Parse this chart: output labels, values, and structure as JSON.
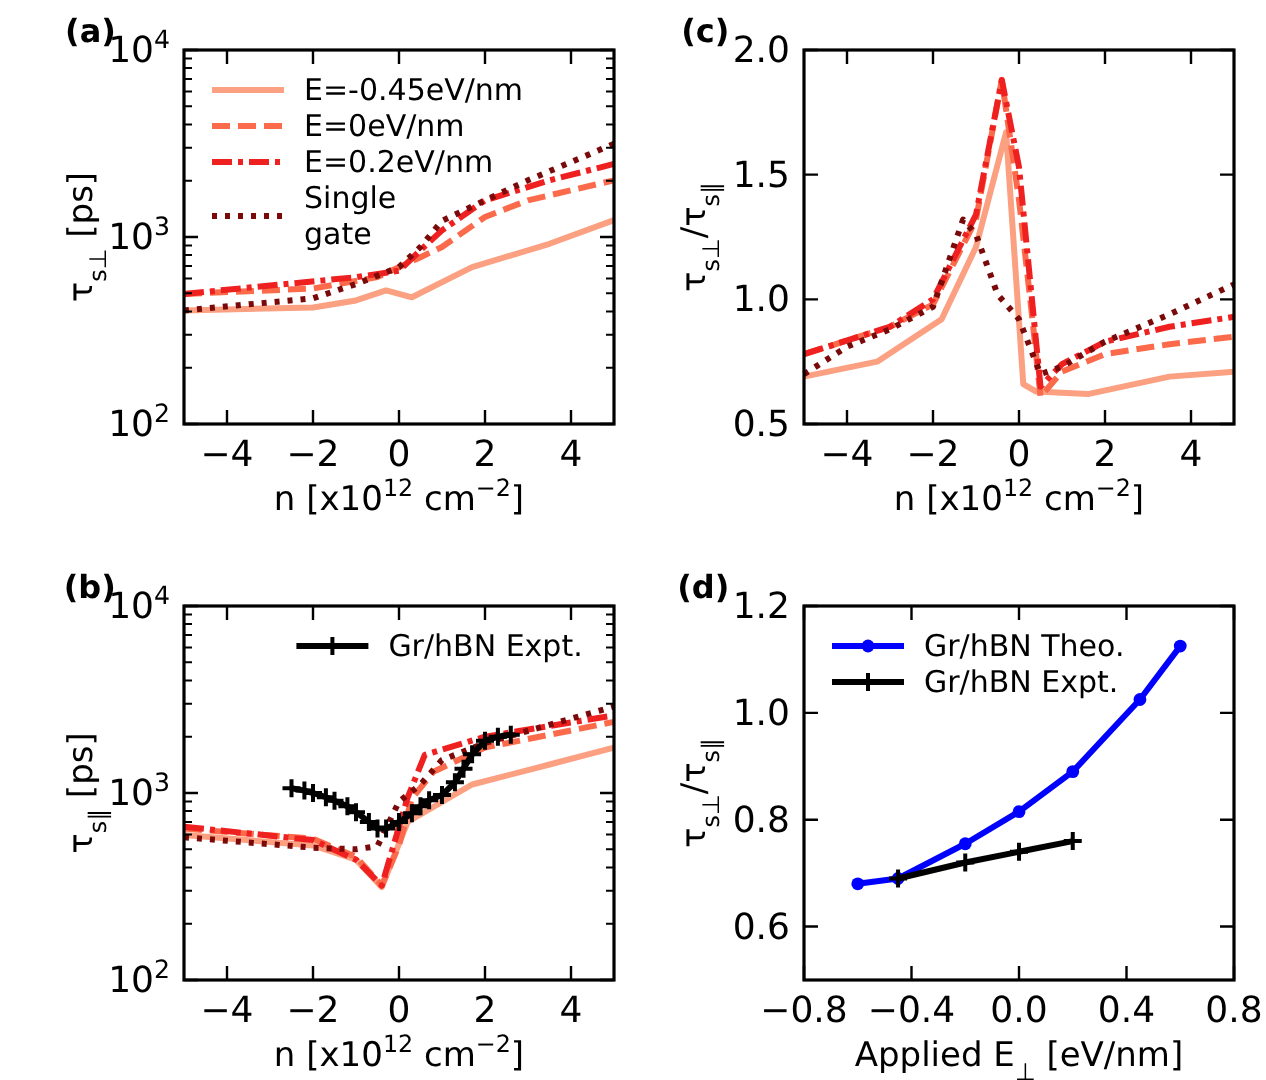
{
  "chart_data": [
    {
      "type": "line",
      "title": "(a)",
      "xlabel": "n [x10$^{12}$ cm$^{−2}$]",
      "ylabel": "τ$_{s⊥}$ [ps]",
      "log": "y",
      "xlim": [
        -5,
        5
      ],
      "xticks": [
        {
          "value": -4,
          "label": "−4"
        },
        {
          "value": -2,
          "label": "−2"
        },
        0,
        2,
        4
      ],
      "ylim": [
        100,
        10000
      ],
      "yticks": [
        {
          "value": 100,
          "label": "10$^{2}$"
        },
        {
          "value": 1000,
          "label": "10$^{3}$"
        },
        {
          "value": 10000,
          "label": "10$^{4}$"
        }
      ],
      "legend": "top left",
      "series": [
        {
          "name": "E=-0.45eV/nm",
          "color": "#fca082",
          "line_style": "solid",
          "x": [
            -5,
            -2,
            -1,
            -0.3,
            0.3,
            1.7,
            3.5,
            5
          ],
          "values": [
            405,
            420,
            458,
            518,
            476,
            690,
            920,
            1230
          ]
        },
        {
          "name": "E=0eV/nm",
          "color": "#fb6a4a",
          "line_style": "dashed",
          "x": [
            -5,
            -2,
            -0.5,
            0.5,
            1,
            2,
            3,
            5
          ],
          "values": [
            496,
            530,
            610,
            780,
            885,
            1280,
            1570,
            2010
          ]
        },
        {
          "name": "E=0.2eV/nm",
          "color": "#ee2020",
          "line_style": "dashdot",
          "x": [
            -5,
            -1,
            0,
            0.5,
            1,
            2,
            3.5,
            5
          ],
          "values": [
            496,
            610,
            660,
            850,
            1085,
            1570,
            2010,
            2460
          ]
        },
        {
          "name": "Single\ngate",
          "color": "#7a0a0a",
          "line_style": "dotted",
          "x": [
            -5,
            -2,
            -1,
            0,
            0.5,
            1,
            2,
            3,
            5
          ],
          "values": [
            405,
            470,
            560,
            690,
            885,
            1220,
            1570,
            2010,
            3150
          ]
        }
      ]
    },
    {
      "type": "line",
      "title": "(c)",
      "xlabel": "n [x10$^{12}$ cm$^{−2}$]",
      "ylabel": "τ$_{s⊥}$/τ$_{s∥}$",
      "xlim": [
        -5,
        5
      ],
      "xticks": [
        {
          "value": -4,
          "label": "−4"
        },
        {
          "value": -2,
          "label": "−2"
        },
        0,
        2,
        4
      ],
      "ylim": [
        0.5,
        2.0
      ],
      "yticks": [
        0.5,
        {
          "value": 1,
          "label": "1.0"
        },
        1.5,
        {
          "value": 2,
          "label": "2.0"
        }
      ],
      "series": [
        {
          "color": "#fca082",
          "line_style": "solid",
          "x": [
            -5,
            -3.3,
            -1.8,
            -1,
            -0.3,
            0.1,
            0.4,
            1.6,
            3.5,
            5
          ],
          "values": [
            0.69,
            0.75,
            0.92,
            1.21,
            1.67,
            0.66,
            0.63,
            0.62,
            0.69,
            0.71
          ]
        },
        {
          "color": "#fb6a4a",
          "line_style": "dashed",
          "x": [
            -5,
            -3,
            -2,
            -1,
            -0.4,
            0,
            0.3,
            0.5,
            1,
            2,
            3.5,
            5
          ],
          "values": [
            0.78,
            0.89,
            0.98,
            1.32,
            1.88,
            1.4,
            0.94,
            0.61,
            0.71,
            0.78,
            0.82,
            0.85
          ]
        },
        {
          "color": "#ee2020",
          "line_style": "dashdot",
          "x": [
            -5,
            -3,
            -2,
            -1,
            -0.4,
            0,
            0.5,
            1,
            2,
            3.5,
            5
          ],
          "values": [
            0.78,
            0.89,
            1.0,
            1.34,
            1.88,
            1.53,
            0.65,
            0.74,
            0.83,
            0.89,
            0.93
          ]
        },
        {
          "color": "#7a0a0a",
          "line_style": "dotted",
          "x": [
            -5,
            -4,
            -3,
            -2,
            -1.3,
            -1,
            -0.5,
            0,
            0.5,
            1,
            2,
            3.5,
            5
          ],
          "values": [
            0.7,
            0.81,
            0.88,
            0.97,
            1.32,
            1.26,
            1.02,
            0.92,
            0.7,
            0.73,
            0.83,
            0.94,
            1.06
          ]
        }
      ]
    },
    {
      "type": "line",
      "title": "(b)",
      "xlabel": "n [x10$^{12}$ cm$^{−2}$]",
      "ylabel": "τ$_{s∥}$ [ps]",
      "log": "y",
      "xlim": [
        -5,
        5
      ],
      "xticks": [
        {
          "value": -4,
          "label": "−4"
        },
        {
          "value": -2,
          "label": "−2"
        },
        0,
        2,
        4
      ],
      "ylim": [
        100,
        10000
      ],
      "yticks": [
        {
          "value": 100,
          "label": "10$^{2}$"
        },
        {
          "value": 1000,
          "label": "10$^{3}$"
        },
        {
          "value": 10000,
          "label": "10$^{4}$"
        }
      ],
      "legend": "top right",
      "series": [
        {
          "color": "#fca082",
          "line_style": "solid",
          "x": [
            -5,
            -2,
            -1,
            -0.4,
            0.2,
            1.7,
            3.5,
            5
          ],
          "values": [
            596,
            524,
            440,
            314,
            700,
            1110,
            1420,
            1750
          ]
        },
        {
          "color": "#fb6a4a",
          "line_style": "dashed",
          "x": [
            -5,
            -2,
            -1,
            -0.4,
            0,
            0.3,
            0.8,
            2,
            5
          ],
          "values": [
            645,
            570,
            455,
            320,
            525,
            935,
            1300,
            1750,
            2400
          ]
        },
        {
          "color": "#ee2020",
          "line_style": "dashdot",
          "x": [
            -5,
            -2,
            -1,
            -0.4,
            0.2,
            0.6,
            2,
            5
          ],
          "values": [
            660,
            560,
            440,
            320,
            945,
            1600,
            2000,
            2600
          ]
        },
        {
          "color": "#7a0a0a",
          "line_style": "dotted",
          "x": [
            -5,
            -2,
            -1,
            -0.5,
            0,
            0.5,
            1,
            2,
            5
          ],
          "values": [
            580,
            510,
            500,
            520,
            900,
            1110,
            1500,
            1850,
            2900
          ]
        },
        {
          "name": "Gr/hBN Expt.",
          "color": "#000000",
          "line_style": "solid",
          "marker": "cross",
          "x": [
            -2.5,
            -2.2,
            -2,
            -1.7,
            -1.5,
            -1.2,
            -1,
            -0.7,
            -0.5,
            -0.3,
            0,
            0.3,
            0.5,
            0.7,
            1,
            1.3,
            1.5,
            1.7,
            2,
            2.3,
            2.6
          ],
          "values": [
            1060,
            1030,
            1000,
            950,
            910,
            850,
            790,
            700,
            645,
            645,
            700,
            780,
            850,
            915,
            975,
            1140,
            1350,
            1610,
            1900,
            2000,
            2050
          ]
        }
      ]
    },
    {
      "type": "line",
      "title": "(d)",
      "xlabel": "Applied E$_{⊥}$ [eV/nm]",
      "ylabel": "τ$_{s⊥}$/τ$_{s∥}$",
      "xlim": [
        -0.8,
        0.8
      ],
      "xticks": [
        {
          "value": -0.8,
          "label": "−0.8"
        },
        {
          "value": -0.4,
          "label": "−0.4"
        },
        {
          "value": 0,
          "label": "0.0"
        },
        0.4,
        0.8
      ],
      "ylim": [
        0.5,
        1.2
      ],
      "yticks": [
        0.6,
        0.8,
        {
          "value": 1,
          "label": "1.0"
        },
        1.2
      ],
      "legend": "top left",
      "series": [
        {
          "name": "Gr/hBN Theo.",
          "color": "#0000ff",
          "line_style": "solid",
          "marker": "circle",
          "x": [
            -0.6,
            -0.45,
            -0.2,
            0,
            0.2,
            0.45,
            0.6
          ],
          "values": [
            0.68,
            0.69,
            0.755,
            0.815,
            0.89,
            1.025,
            1.125
          ]
        },
        {
          "name": "Gr/hBN Expt.",
          "color": "#000000",
          "line_style": "solid",
          "marker": "cross",
          "x": [
            -0.45,
            -0.2,
            0,
            0.2
          ],
          "values": [
            0.69,
            0.72,
            0.74,
            0.76
          ]
        }
      ]
    }
  ]
}
